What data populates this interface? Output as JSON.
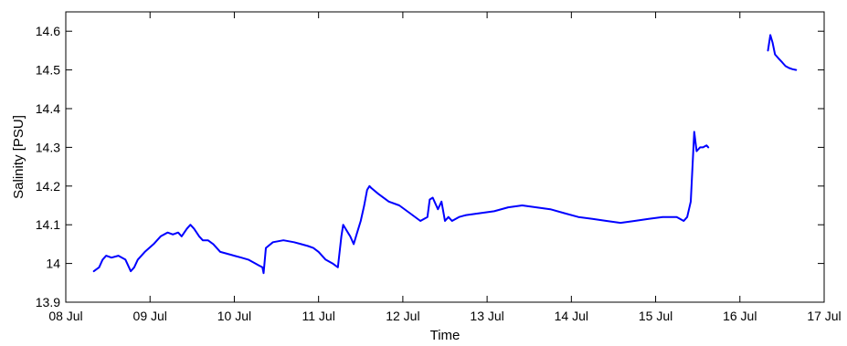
{
  "chart_data": {
    "type": "line",
    "title": "",
    "xlabel": "Time",
    "ylabel": "Salinity [PSU]",
    "xlim": [
      "08 Jul",
      "17 Jul"
    ],
    "ylim": [
      13.9,
      14.65
    ],
    "x_tick_labels": [
      "08 Jul",
      "09 Jul",
      "10 Jul",
      "11 Jul",
      "12 Jul",
      "13 Jul",
      "14 Jul",
      "15 Jul",
      "16 Jul",
      "17 Jul"
    ],
    "y_ticks": [
      13.9,
      14,
      14.1,
      14.2,
      14.3,
      14.4,
      14.5,
      14.6
    ],
    "y_tick_labels": [
      "13.9",
      "14",
      "14.1",
      "14.2",
      "14.3",
      "14.4",
      "14.5",
      "14.6"
    ],
    "grid": false,
    "legend": "none",
    "series_color": "#0000ff",
    "series": [
      {
        "segments": [
          {
            "x": [
              "08 Jul 08:00",
              "08 Jul 09:30",
              "08 Jul 10:30",
              "08 Jul 11:30",
              "08 Jul 13:00",
              "08 Jul 15:00",
              "08 Jul 17:00",
              "08 Jul 18:30",
              "08 Jul 19:30",
              "08 Jul 20:30",
              "08 Jul 22:30",
              "09 Jul 01:00",
              "09 Jul 03:00",
              "09 Jul 05:00",
              "09 Jul 06:30",
              "09 Jul 08:00",
              "09 Jul 09:00",
              "09 Jul 10:30",
              "09 Jul 11:30",
              "09 Jul 12:30",
              "09 Jul 14:00",
              "09 Jul 15:00",
              "09 Jul 16:30",
              "09 Jul 18:00",
              "09 Jul 20:00",
              "09 Jul 22:00",
              "10 Jul 00:00",
              "10 Jul 02:00",
              "10 Jul 04:00",
              "10 Jul 06:00",
              "10 Jul 07:00",
              "10 Jul 08:00",
              "10 Jul 08:20",
              "10 Jul 09:00",
              "10 Jul 11:00",
              "10 Jul 14:00",
              "10 Jul 17:00",
              "10 Jul 19:00",
              "10 Jul 21:00",
              "10 Jul 22:30",
              "11 Jul 00:00",
              "11 Jul 02:00",
              "11 Jul 04:00",
              "11 Jul 05:30",
              "11 Jul 06:30",
              "11 Jul 07:00",
              "11 Jul 07:40",
              "11 Jul 09:00",
              "11 Jul 10:00",
              "11 Jul 11:00",
              "11 Jul 12:00",
              "11 Jul 13:00",
              "11 Jul 13:50",
              "11 Jul 14:30",
              "11 Jul 15:00",
              "11 Jul 17:00",
              "11 Jul 20:00",
              "11 Jul 23:00",
              "12 Jul 02:00",
              "12 Jul 05:00",
              "12 Jul 07:00",
              "12 Jul 07:40",
              "12 Jul 08:30",
              "12 Jul 10:00",
              "12 Jul 11:00",
              "12 Jul 12:00",
              "12 Jul 13:00",
              "12 Jul 14:00",
              "12 Jul 16:00",
              "12 Jul 18:00",
              "12 Jul 22:00",
              "13 Jul 02:00",
              "13 Jul 06:00",
              "13 Jul 10:00",
              "13 Jul 14:00",
              "13 Jul 18:00",
              "13 Jul 22:00",
              "14 Jul 02:00",
              "14 Jul 06:00",
              "14 Jul 10:00",
              "14 Jul 14:00",
              "14 Jul 18:00",
              "14 Jul 22:00",
              "15 Jul 02:00",
              "15 Jul 06:00",
              "15 Jul 08:00",
              "15 Jul 09:00",
              "15 Jul 10:00",
              "15 Jul 11:00",
              "15 Jul 11:40",
              "15 Jul 12:10",
              "15 Jul 12:40",
              "15 Jul 13:30",
              "15 Jul 14:30",
              "15 Jul 15:00"
            ],
            "y": [
              13.98,
              13.99,
              14.01,
              14.02,
              14.015,
              14.02,
              14.01,
              13.98,
              13.99,
              14.01,
              14.03,
              14.05,
              14.07,
              14.08,
              14.075,
              14.08,
              14.07,
              14.09,
              14.1,
              14.09,
              14.07,
              14.06,
              14.06,
              14.05,
              14.03,
              14.025,
              14.02,
              14.015,
              14.01,
              14.0,
              13.995,
              13.99,
              13.975,
              14.04,
              14.055,
              14.06,
              14.055,
              14.05,
              14.045,
              14.04,
              14.03,
              14.01,
              14.0,
              13.99,
              14.07,
              14.1,
              14.09,
              14.07,
              14.05,
              14.08,
              14.11,
              14.15,
              14.19,
              14.2,
              14.195,
              14.18,
              14.16,
              14.15,
              14.13,
              14.11,
              14.12,
              14.165,
              14.17,
              14.14,
              14.16,
              14.11,
              14.12,
              14.11,
              14.12,
              14.125,
              14.13,
              14.135,
              14.145,
              14.15,
              14.145,
              14.14,
              14.13,
              14.12,
              14.115,
              14.11,
              14.105,
              14.11,
              14.115,
              14.12,
              14.12,
              14.11,
              14.12,
              14.16,
              14.34,
              14.29,
              14.295,
              14.3,
              14.3,
              14.305,
              14.3
            ]
          },
          {
            "x": [
              "16 Jul 08:00",
              "16 Jul 08:40",
              "16 Jul 09:20",
              "16 Jul 10:00",
              "16 Jul 11:00",
              "16 Jul 12:00",
              "16 Jul 13:00",
              "16 Jul 14:00",
              "16 Jul 15:00",
              "16 Jul 16:00"
            ],
            "y": [
              14.55,
              14.59,
              14.57,
              14.54,
              14.53,
              14.52,
              14.51,
              14.505,
              14.502,
              14.5
            ]
          }
        ]
      }
    ]
  }
}
